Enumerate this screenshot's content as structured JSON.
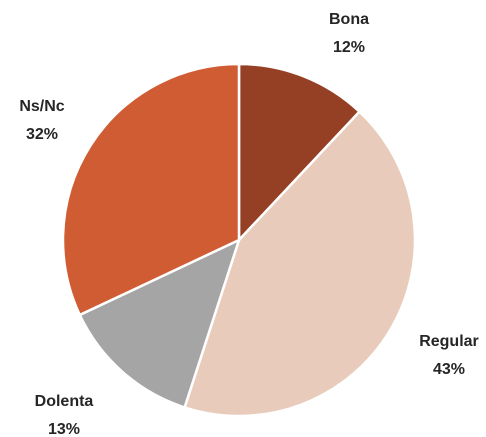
{
  "chart_data": {
    "type": "pie",
    "categories": [
      "Bona",
      "Regular",
      "Dolenta",
      "Ns/Nc"
    ],
    "values": [
      12,
      43,
      13,
      32
    ],
    "value_labels": [
      "12%",
      "43%",
      "13%",
      "32%"
    ],
    "colors": [
      "#954024",
      "#e8cbbb",
      "#a5a5a5",
      "#d05c33"
    ]
  }
}
